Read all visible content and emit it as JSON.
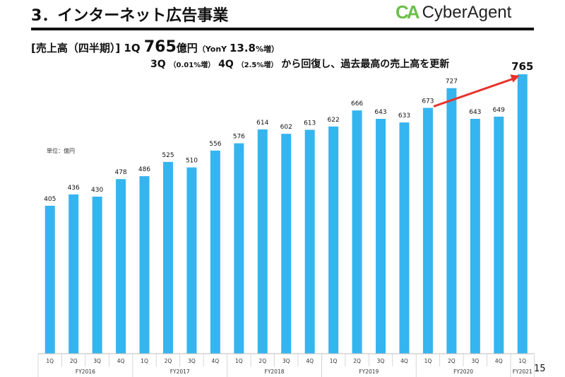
{
  "header": {
    "title": "3．インターネット広告事業",
    "logo_text": "CyberAgent",
    "logo_mark": "CA",
    "brand_color": "#6cc04a"
  },
  "subtitle": {
    "prefix": "[売上高（四半期）] 1Q ",
    "value": "765",
    "value_unit": "億円",
    "yoy_open": "（YonY ",
    "yoy_value": "13.8",
    "yoy_unit": "%増）",
    "line2_a": "3Q ",
    "line2_a_note": "（0.01%増）",
    "line2_b": " 4Q ",
    "line2_b_note": "（2.5%増）",
    "line2_c": " から回復し、過去最高の売上高を更新"
  },
  "unit_label": "単位：億円",
  "page_number": "15",
  "chart_data": {
    "type": "bar",
    "bar_color": "#35b5ef",
    "arrow_color": "#e8312a",
    "categories": [
      "1Q",
      "2Q",
      "3Q",
      "4Q",
      "1Q",
      "2Q",
      "3Q",
      "4Q",
      "1Q",
      "2Q",
      "3Q",
      "4Q",
      "1Q",
      "2Q",
      "3Q",
      "4Q",
      "1Q",
      "2Q",
      "3Q",
      "4Q",
      "1Q"
    ],
    "groups": [
      {
        "label": "FY2016",
        "count": 4
      },
      {
        "label": "FY2017",
        "count": 4
      },
      {
        "label": "FY2018",
        "count": 4
      },
      {
        "label": "FY2019",
        "count": 4
      },
      {
        "label": "FY2020",
        "count": 4
      },
      {
        "label": "FY2021",
        "count": 1
      }
    ],
    "values": [
      405,
      436,
      430,
      478,
      486,
      525,
      510,
      556,
      576,
      614,
      602,
      613,
      622,
      666,
      643,
      633,
      673,
      727,
      643,
      649,
      765
    ],
    "ylim": [
      0,
      800
    ],
    "grid": false,
    "annotation": {
      "type": "arrow",
      "from_index": 16,
      "to_index": 20
    }
  }
}
